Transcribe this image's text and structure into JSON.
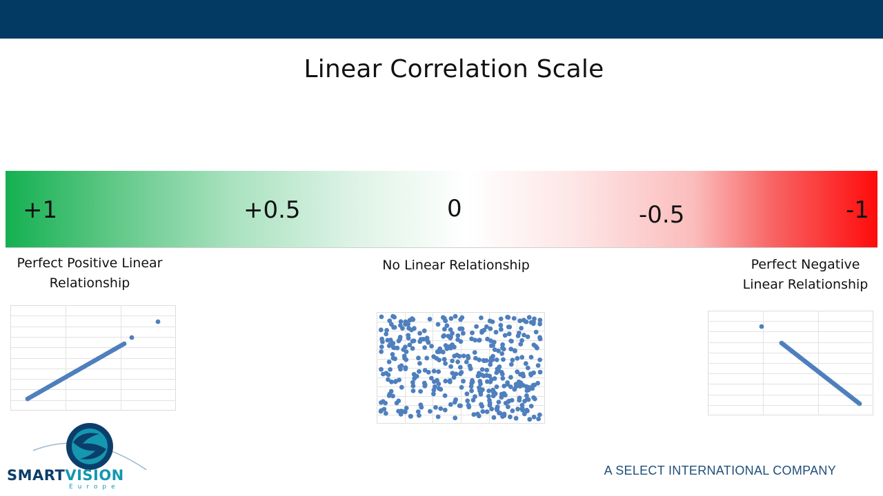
{
  "title": "Linear Correlation Scale",
  "scale": {
    "ticks": [
      "+1",
      "+0.5",
      "0",
      "-0.5",
      "-1"
    ],
    "colors": {
      "positive": "#14b050",
      "neutral": "#ffffff",
      "negative": "#ff0b0b"
    }
  },
  "descriptions": {
    "positive_line1": "Perfect Positive Linear",
    "positive_line2": "Relationship",
    "none": "No Linear Relationship",
    "negative_line1": "Perfect Negative",
    "negative_line2": "Linear Relationship"
  },
  "chart_data": [
    {
      "type": "scatter",
      "name": "positive",
      "correlation": 1,
      "point_color": "#4f7fbd",
      "grid": true
    },
    {
      "type": "scatter",
      "name": "none",
      "correlation": 0,
      "point_color": "#4f7fbd",
      "grid": true
    },
    {
      "type": "scatter",
      "name": "negative",
      "correlation": -1,
      "point_color": "#4f7fbd",
      "grid": true
    }
  ],
  "logo": {
    "word1": "SMART",
    "word2": "VISION",
    "sub": "Europe"
  },
  "company": "A SELECT INTERNATIONAL COMPANY",
  "colors": {
    "header": "#033a63",
    "point": "#4f7fbd"
  }
}
